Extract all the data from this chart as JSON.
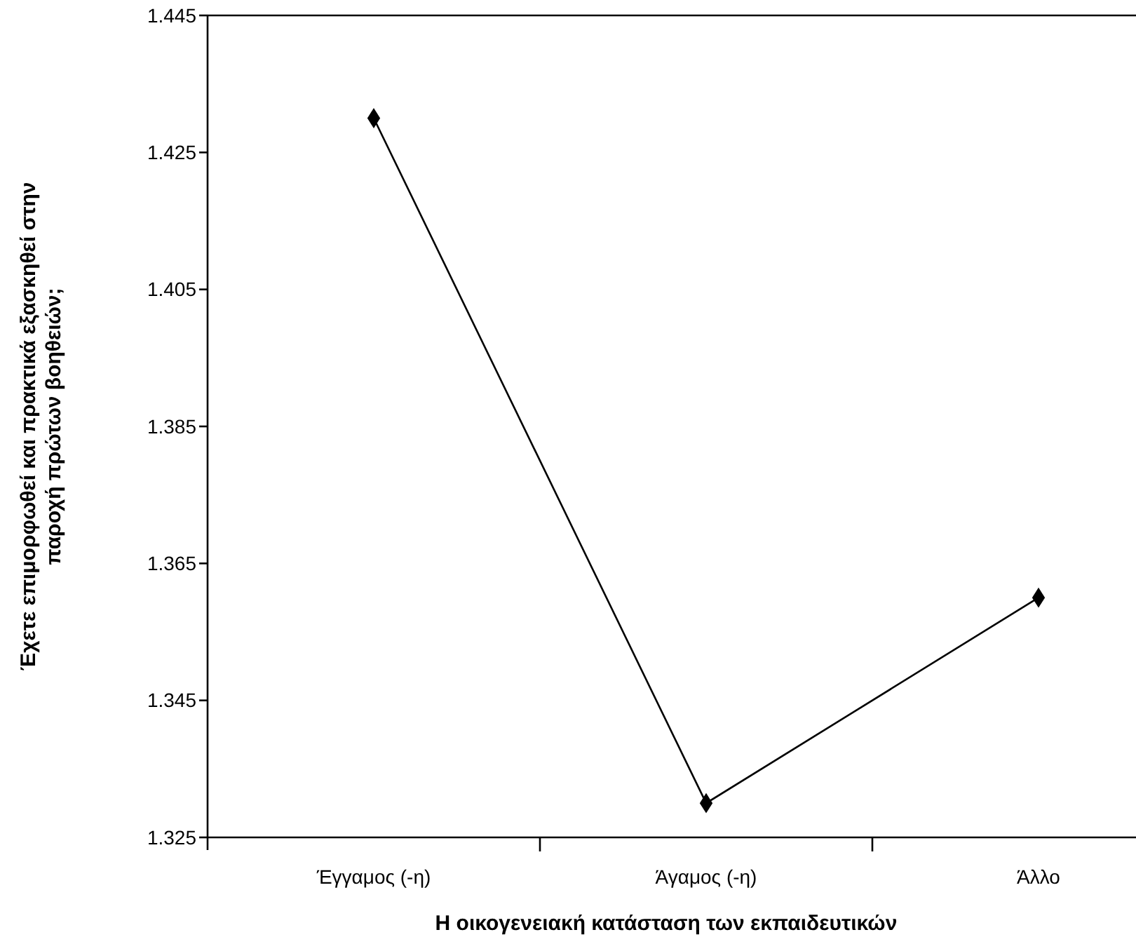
{
  "chart_data": {
    "type": "line",
    "xlabel": "Η οικογενειακή κατάσταση των εκπαιδευτικών",
    "ylabel": "Έχετε επιμορφωθεί και πρακτικά εξασκηθεί στην παροχή πρώτων βοηθειών;",
    "categories": [
      "Έγγαμος (-η)",
      "Άγαμος (-η)",
      "Άλλο"
    ],
    "series": [
      {
        "color": "#000000",
        "values": [
          1.43,
          1.33,
          1.36
        ]
      }
    ],
    "ylim": [
      1.325,
      1.445
    ],
    "yticks": [
      {
        "value": 1.325,
        "label": "1.325"
      },
      {
        "value": 1.345,
        "label": "1.345"
      },
      {
        "value": 1.365,
        "label": "1.365"
      },
      {
        "value": 1.385,
        "label": "1.385"
      },
      {
        "value": 1.405,
        "label": "1.405"
      },
      {
        "value": 1.425,
        "label": "1.425"
      },
      {
        "value": 1.445,
        "label": "1.445"
      }
    ],
    "marker": "diamond",
    "line_style": "solid",
    "grid": false
  }
}
